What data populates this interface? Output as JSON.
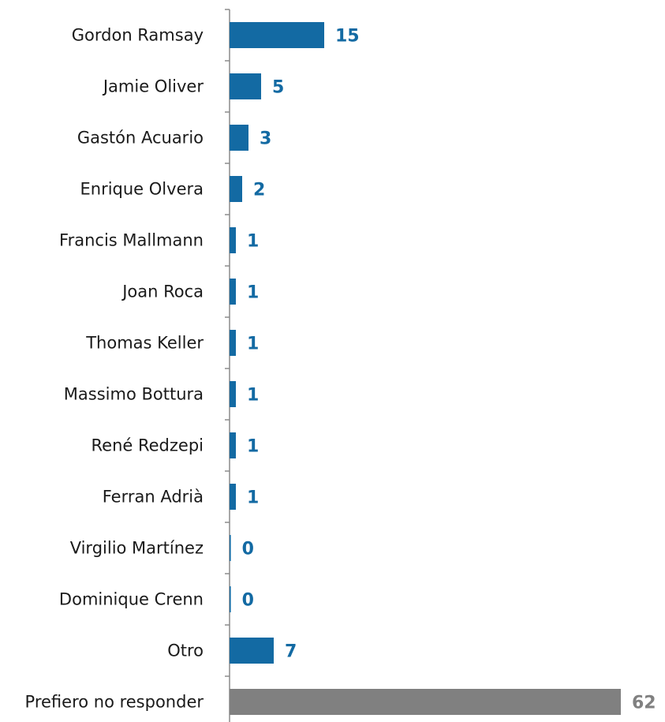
{
  "chart_data": {
    "type": "bar",
    "orientation": "horizontal",
    "categories": [
      "Gordon Ramsay",
      "Jamie Oliver",
      "Gastón Acuario",
      "Enrique Olvera",
      "Francis Mallmann ",
      "Joan Roca",
      "Thomas Keller",
      "Massimo Bottura",
      "René Redzepi",
      "Ferran Adrià",
      "Virgilio Martínez",
      "Dominique Crenn",
      "Otro",
      "Prefiero no responder"
    ],
    "values": [
      15,
      5,
      3,
      2,
      1,
      1,
      1,
      1,
      1,
      1,
      0.2,
      0.2,
      7,
      62
    ],
    "value_labels": [
      "15",
      "5",
      "3",
      "2",
      "1",
      "1",
      "1",
      "1",
      "1",
      "1",
      "0",
      "0",
      "7",
      "62"
    ],
    "title": "",
    "xlabel": "",
    "ylabel": "",
    "xlim": [
      0,
      65
    ],
    "grid": false,
    "legend": "none",
    "colors": {
      "bar": "#136aa3",
      "bar_last": "#808080",
      "label": "#136aa3",
      "label_last": "#808080",
      "axis": "#8c8c8c",
      "text": "#1a1a1a"
    }
  }
}
